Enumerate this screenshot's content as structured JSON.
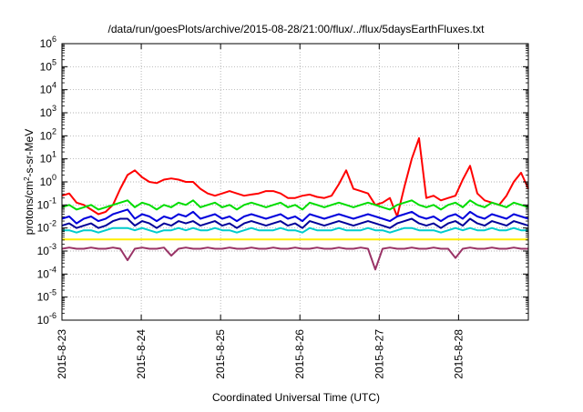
{
  "chart_data": {
    "type": "line",
    "title": "/data/run/goesPlots/archive/2015-08-28/21:00/flux/../flux/5daysEarthFluxes.txt",
    "xlabel": "Coordinated Universal Time (UTC)",
    "ylabel": {
      "prefix": "protons/cm",
      "sup": "2",
      "suffix": "-s-sr-MeV"
    },
    "yscale": "log",
    "ylim_exp": [
      -6,
      6
    ],
    "y_ticks": [
      {
        "base": "10",
        "exp": "-6"
      },
      {
        "base": "10",
        "exp": "-5"
      },
      {
        "base": "10",
        "exp": "-4"
      },
      {
        "base": "10",
        "exp": "-3"
      },
      {
        "base": "10",
        "exp": "-2"
      },
      {
        "base": "10",
        "exp": "-1"
      },
      {
        "base": "10",
        "exp": "0"
      },
      {
        "base": "10",
        "exp": "1"
      },
      {
        "base": "10",
        "exp": "2"
      },
      {
        "base": "10",
        "exp": "3"
      },
      {
        "base": "10",
        "exp": "4"
      },
      {
        "base": "10",
        "exp": "5"
      },
      {
        "base": "10",
        "exp": "6"
      }
    ],
    "xlim_days": [
      0,
      5.88
    ],
    "x_ticks": [
      "2015-8-23",
      "2015-8-24",
      "2015-8-25",
      "2015-8-26",
      "2015-8-27",
      "2015-8-28"
    ],
    "grid": true,
    "series": [
      {
        "color": "#ff0000",
        "log10_values": [
          -0.6,
          -0.5,
          -0.9,
          -1.0,
          -1.2,
          -1.4,
          -1.3,
          -1.0,
          -0.3,
          0.3,
          0.5,
          0.2,
          0.0,
          -0.05,
          0.1,
          0.15,
          0.1,
          0.0,
          0.0,
          -0.3,
          -0.5,
          -0.6,
          -0.5,
          -0.4,
          -0.5,
          -0.6,
          -0.55,
          -0.5,
          -0.4,
          -0.4,
          -0.5,
          -0.7,
          -0.7,
          -0.6,
          -0.55,
          -0.65,
          -0.7,
          -0.6,
          -0.1,
          0.5,
          -0.3,
          -0.4,
          -0.5,
          -1.0,
          -0.9,
          -0.7,
          -1.5,
          -0.2,
          1.0,
          1.9,
          -0.7,
          -0.6,
          -0.8,
          -0.7,
          -0.6,
          0.1,
          0.7,
          -0.5,
          -0.8,
          -0.9,
          -1.0,
          -0.6,
          0.0,
          0.4,
          -0.3
        ]
      },
      {
        "color": "#00dd00",
        "log10_values": [
          -1.1,
          -1.0,
          -1.2,
          -1.1,
          -1.0,
          -1.2,
          -1.1,
          -1.0,
          -0.9,
          -0.8,
          -1.1,
          -0.9,
          -1.0,
          -1.2,
          -1.0,
          -1.1,
          -0.9,
          -1.0,
          -0.8,
          -1.1,
          -1.0,
          -0.9,
          -1.1,
          -1.0,
          -1.2,
          -1.0,
          -0.9,
          -1.0,
          -1.1,
          -1.0,
          -0.9,
          -1.1,
          -1.0,
          -1.2,
          -0.9,
          -1.0,
          -1.1,
          -1.0,
          -0.9,
          -1.0,
          -1.1,
          -1.0,
          -0.9,
          -1.0,
          -1.1,
          -1.2,
          -1.0,
          -0.9,
          -0.8,
          -1.0,
          -1.1,
          -1.0,
          -1.2,
          -1.0,
          -0.9,
          -1.1,
          -0.8,
          -1.0,
          -1.1,
          -0.9,
          -1.0,
          -1.1,
          -0.9,
          -1.0,
          -1.1
        ]
      },
      {
        "color": "#0000dd",
        "log10_values": [
          -1.6,
          -1.5,
          -1.8,
          -1.6,
          -1.5,
          -1.7,
          -1.6,
          -1.4,
          -1.3,
          -1.2,
          -1.6,
          -1.4,
          -1.5,
          -1.7,
          -1.5,
          -1.6,
          -1.4,
          -1.5,
          -1.3,
          -1.6,
          -1.5,
          -1.4,
          -1.6,
          -1.5,
          -1.7,
          -1.5,
          -1.4,
          -1.5,
          -1.6,
          -1.5,
          -1.4,
          -1.6,
          -1.5,
          -1.7,
          -1.4,
          -1.5,
          -1.6,
          -1.5,
          -1.4,
          -1.5,
          -1.6,
          -1.5,
          -1.4,
          -1.5,
          -1.6,
          -1.7,
          -1.5,
          -1.4,
          -1.3,
          -1.5,
          -1.6,
          -1.5,
          -1.7,
          -1.5,
          -1.4,
          -1.6,
          -1.3,
          -1.5,
          -1.6,
          -1.4,
          -1.5,
          -1.6,
          -1.4,
          -1.5,
          -1.6
        ]
      },
      {
        "color": "#000099",
        "log10_values": [
          -1.9,
          -1.8,
          -2.0,
          -1.9,
          -1.8,
          -2.0,
          -1.9,
          -1.7,
          -1.6,
          -1.6,
          -1.9,
          -1.7,
          -1.8,
          -2.0,
          -1.8,
          -1.9,
          -1.7,
          -1.8,
          -1.7,
          -1.9,
          -1.8,
          -1.7,
          -1.9,
          -1.8,
          -2.0,
          -1.8,
          -1.7,
          -1.8,
          -1.9,
          -1.8,
          -1.7,
          -1.9,
          -1.8,
          -2.0,
          -1.7,
          -1.8,
          -1.9,
          -1.8,
          -1.7,
          -1.8,
          -1.9,
          -1.8,
          -1.7,
          -1.8,
          -1.9,
          -2.0,
          -1.8,
          -1.7,
          -1.6,
          -1.8,
          -1.9,
          -1.8,
          -2.0,
          -1.8,
          -1.7,
          -1.9,
          -1.6,
          -1.8,
          -1.9,
          -1.7,
          -1.8,
          -1.9,
          -1.7,
          -1.8,
          -1.9
        ]
      },
      {
        "color": "#00cccc",
        "log10_values": [
          -2.1,
          -2.1,
          -2.2,
          -2.1,
          -2.1,
          -2.2,
          -2.1,
          -2.0,
          -2.0,
          -2.0,
          -2.1,
          -2.0,
          -2.1,
          -2.2,
          -2.1,
          -2.1,
          -2.0,
          -2.1,
          -2.0,
          -2.1,
          -2.1,
          -2.0,
          -2.1,
          -2.1,
          -2.2,
          -2.1,
          -2.0,
          -2.1,
          -2.1,
          -2.1,
          -2.0,
          -2.1,
          -2.1,
          -2.2,
          -2.0,
          -2.1,
          -2.1,
          -2.1,
          -2.0,
          -2.1,
          -2.1,
          -2.1,
          -2.0,
          -2.1,
          -2.1,
          -2.2,
          -2.1,
          -2.0,
          -2.0,
          -2.1,
          -2.1,
          -2.1,
          -2.2,
          -2.1,
          -2.0,
          -2.1,
          -2.0,
          -2.1,
          -2.1,
          -2.0,
          -2.1,
          -2.1,
          -2.0,
          -2.1,
          -2.1
        ]
      },
      {
        "color": "#ffee00",
        "log10_values": [
          -2.5,
          -2.5,
          -2.5,
          -2.5,
          -2.5,
          -2.5,
          -2.5,
          -2.5,
          -2.5,
          -2.5,
          -2.5,
          -2.5,
          -2.5,
          -2.5,
          -2.5,
          -2.5,
          -2.5,
          -2.5,
          -2.5,
          -2.5,
          -2.5,
          -2.5,
          -2.5,
          -2.5,
          -2.5,
          -2.5,
          -2.5,
          -2.5,
          -2.5,
          -2.5,
          -2.5,
          -2.5,
          -2.5,
          -2.5,
          -2.5,
          -2.5,
          -2.5,
          -2.5,
          -2.5,
          -2.5,
          -2.5,
          -2.5,
          -2.5,
          -2.5,
          -2.5,
          -2.5,
          -2.5,
          -2.5,
          -2.5,
          -2.5,
          -2.5,
          -2.5,
          -2.5,
          -2.5,
          -2.5,
          -2.5,
          -2.5,
          -2.5,
          -2.5,
          -2.5,
          -2.5,
          -2.5,
          -2.5,
          -2.5,
          -2.5
        ]
      },
      {
        "color": "#993366",
        "log10_values": [
          -2.9,
          -2.85,
          -2.9,
          -2.9,
          -2.85,
          -2.9,
          -2.9,
          -2.85,
          -2.9,
          -3.4,
          -2.9,
          -2.85,
          -2.9,
          -2.9,
          -2.85,
          -3.2,
          -2.9,
          -2.85,
          -2.9,
          -2.9,
          -2.85,
          -2.9,
          -2.9,
          -2.85,
          -2.9,
          -2.9,
          -2.85,
          -2.9,
          -2.9,
          -2.85,
          -2.9,
          -2.9,
          -2.85,
          -2.9,
          -2.9,
          -2.85,
          -2.9,
          -2.9,
          -2.85,
          -2.9,
          -2.9,
          -2.85,
          -2.9,
          -3.8,
          -2.9,
          -2.85,
          -2.9,
          -2.9,
          -2.85,
          -2.9,
          -2.9,
          -2.85,
          -2.9,
          -2.9,
          -3.3,
          -2.9,
          -2.85,
          -2.9,
          -2.9,
          -2.85,
          -2.9,
          -2.9,
          -2.85,
          -2.9,
          -2.9
        ]
      }
    ]
  }
}
